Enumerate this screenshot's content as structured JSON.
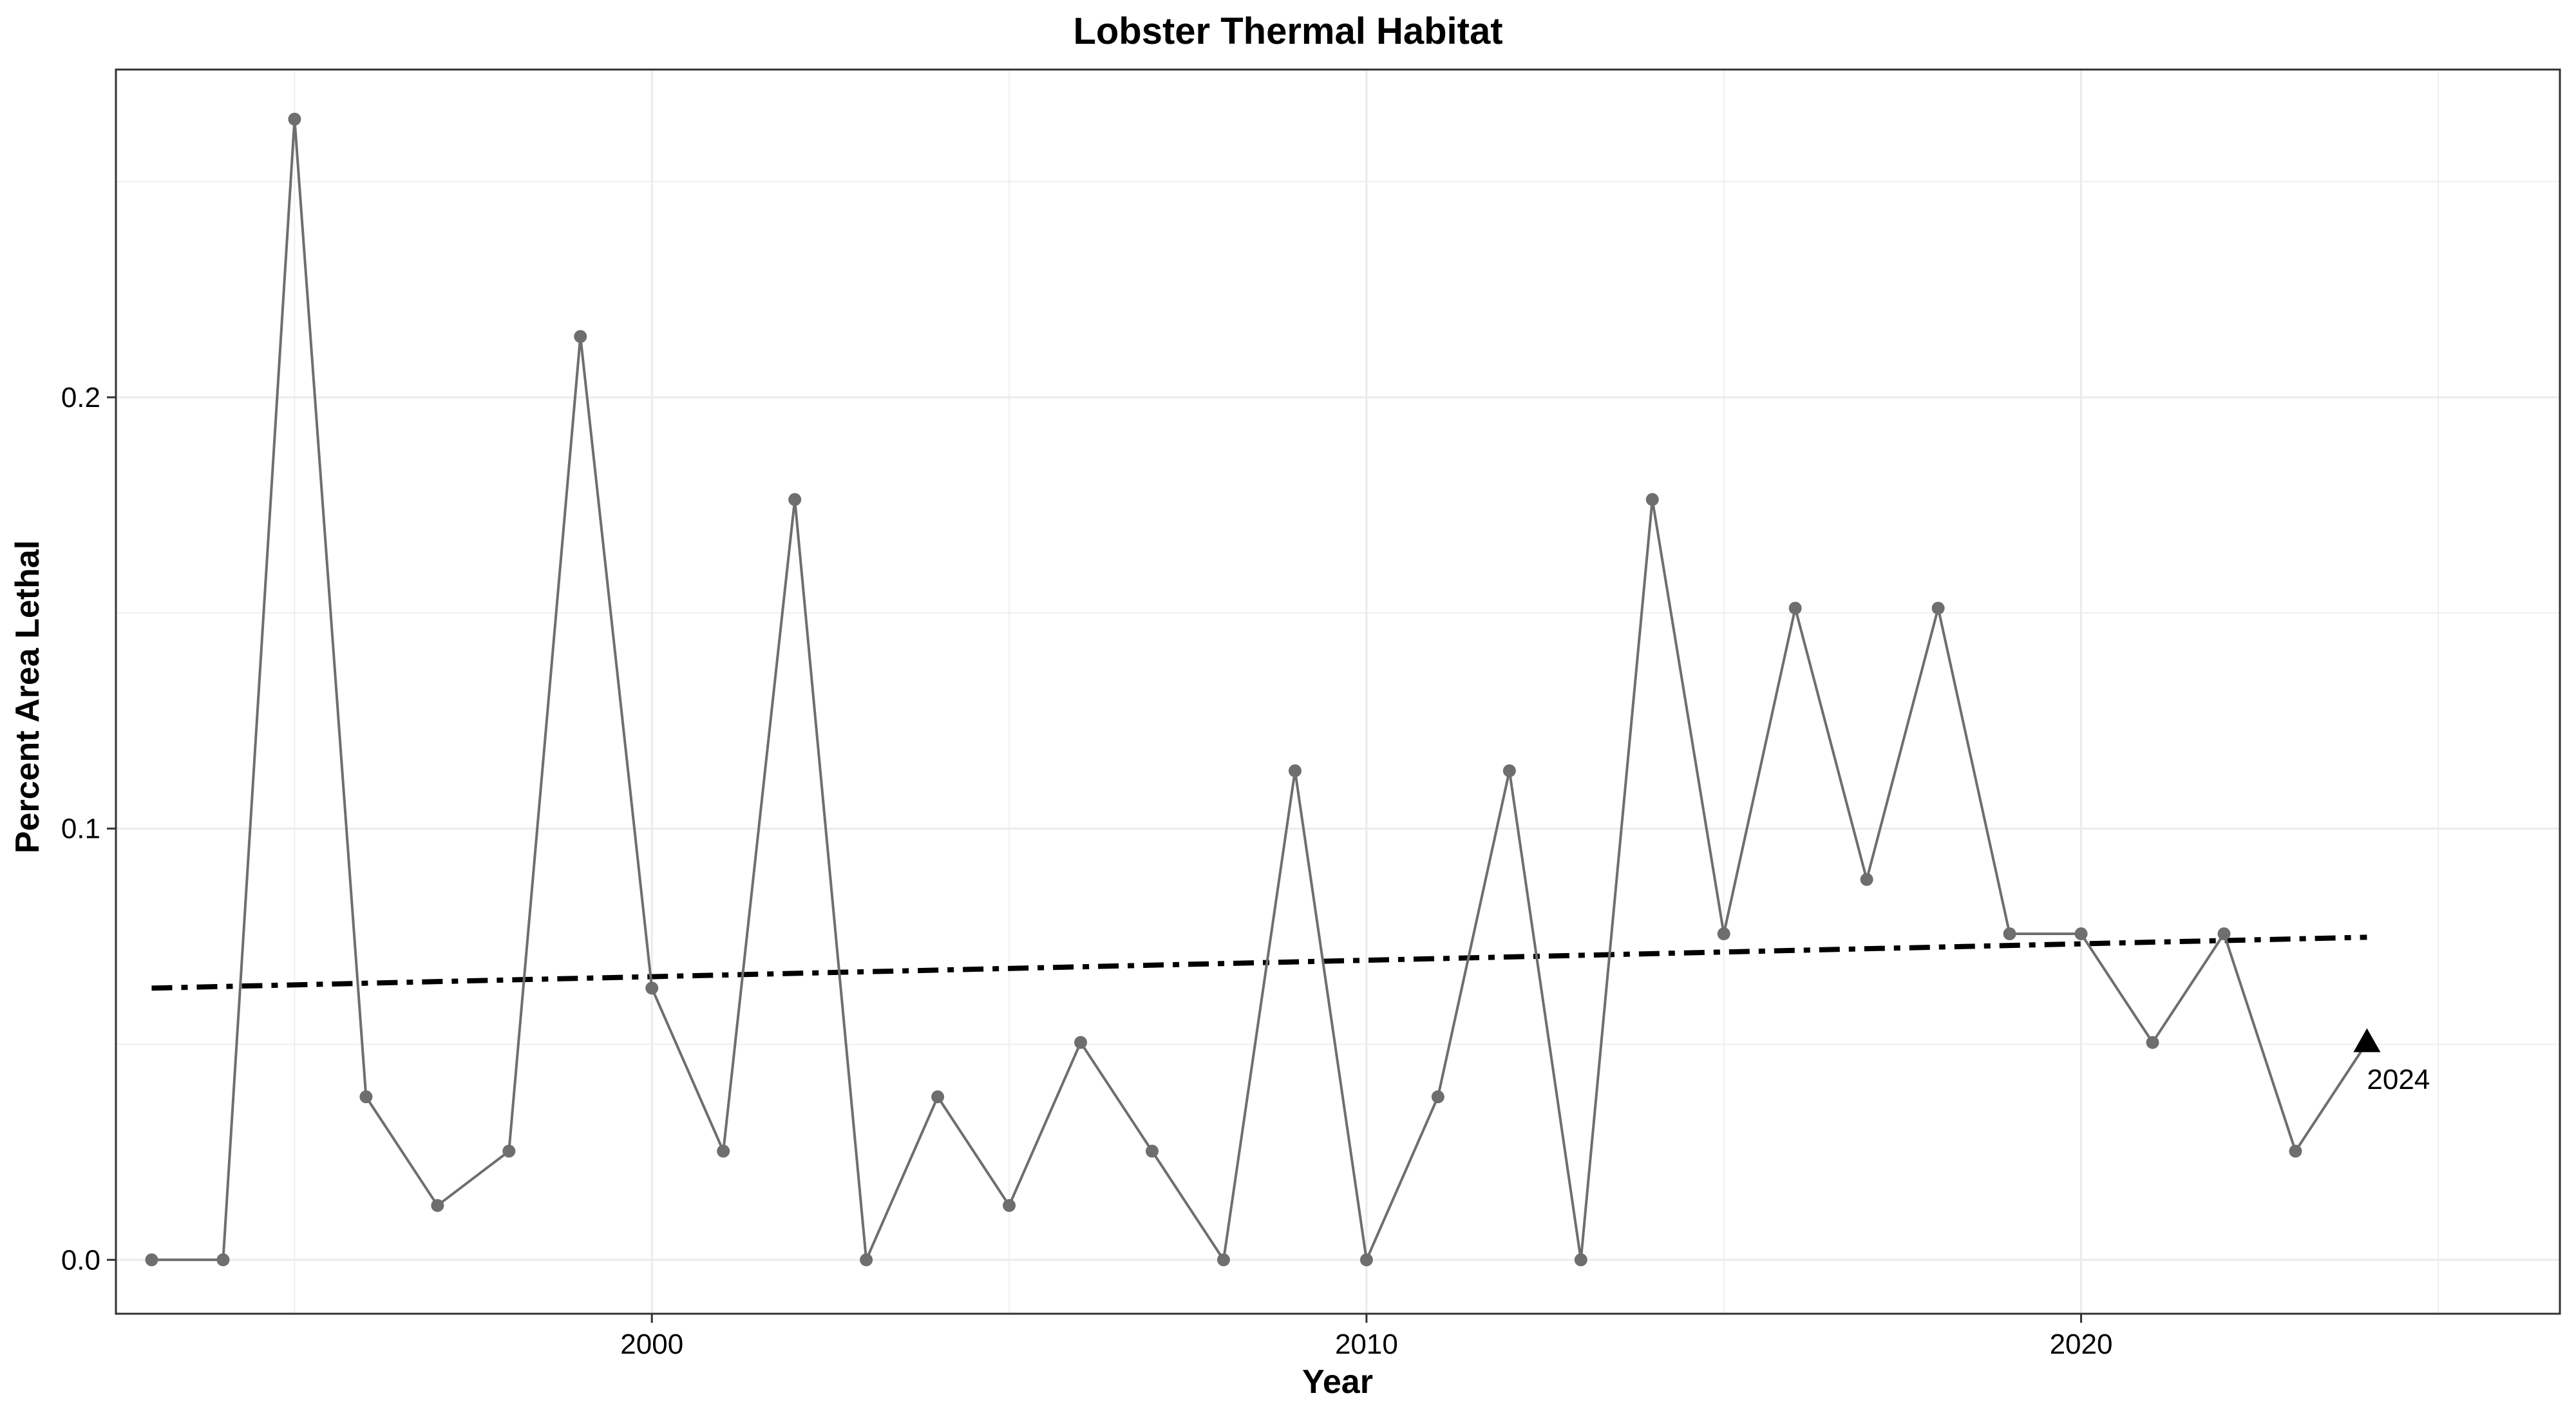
{
  "chart_data": {
    "type": "line",
    "title": "Lobster Thermal Habitat",
    "xlabel": "Year",
    "ylabel": "Percent Area Lethal",
    "xlim": [
      1992.5,
      2026.7
    ],
    "ylim": [
      -0.0125,
      0.276
    ],
    "x_ticks": [
      2000,
      2010,
      2020
    ],
    "y_ticks": [
      0.0,
      0.1,
      0.2
    ],
    "x_tick_labels": [
      "2000",
      "2010",
      "2020"
    ],
    "y_tick_labels": [
      "0.0",
      "0.1",
      "0.2"
    ],
    "grid": true,
    "legend": "none",
    "series": [
      {
        "x": [
          1993,
          1994,
          1995,
          1996,
          1997,
          1998,
          1999,
          2000,
          2001,
          2002,
          2003,
          2004,
          2005,
          2006,
          2007,
          2008,
          2009,
          2010,
          2011,
          2012,
          2013,
          2014,
          2015,
          2016,
          2017,
          2018,
          2019,
          2020,
          2021,
          2022,
          2023,
          2024
        ],
        "values": [
          0.0,
          0.0,
          0.2645,
          0.0378,
          0.0126,
          0.0252,
          0.2141,
          0.063,
          0.0252,
          0.1763,
          0.0,
          0.0378,
          0.0126,
          0.0504,
          0.0252,
          0.0,
          0.1134,
          0.0,
          0.0378,
          0.1134,
          0.0,
          0.1763,
          0.0756,
          0.1511,
          0.0882,
          0.1511,
          0.0756,
          0.0756,
          0.0504,
          0.0756,
          0.0252,
          0.0504
        ],
        "color": "#6e6e6e"
      }
    ],
    "trend": {
      "x": [
        1993,
        2024
      ],
      "values": [
        0.063,
        0.0748
      ],
      "color": "#000000",
      "style": "dashed"
    },
    "annotation": {
      "label": "2024",
      "x": 2024,
      "value": 0.0504,
      "marker": "triangle"
    }
  }
}
